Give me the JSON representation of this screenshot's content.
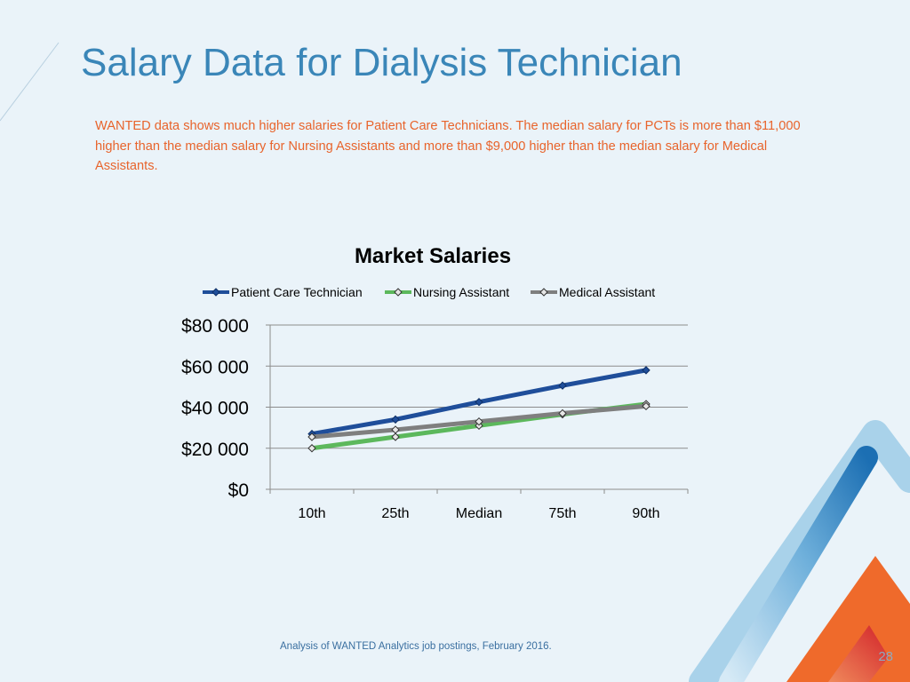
{
  "slide": {
    "title": "Salary Data for Dialysis Technician",
    "intro": "WANTED data shows much higher salaries for Patient Care Technicians.  The median salary for PCTs is more than $11,000 higher than the median salary for Nursing Assistants and more than $9,000 higher than the median salary for Medical Assistants.",
    "source_note": "Analysis of WANTED Analytics job postings, February 2016.",
    "page_number": "28"
  },
  "colors": {
    "title": "#3a86b8",
    "intro_text": "#e8642c",
    "background": "#eaf3f9",
    "deco_blue_light": "#a9d2ea",
    "deco_blue_dark": "#1c6fb3",
    "deco_orange": "#ef6a2b",
    "deco_red": "#d2232a"
  },
  "chart_data": {
    "type": "line",
    "title": "Market Salaries",
    "categories": [
      "10th",
      "25th",
      "Median",
      "75th",
      "90th"
    ],
    "ylim": [
      0,
      80000
    ],
    "yticks": [
      0,
      20000,
      40000,
      60000,
      80000
    ],
    "ytick_labels": [
      "$0",
      "$20 000",
      "$40 000",
      "$60 000",
      "$80 000"
    ],
    "grid": true,
    "legend_position": "top",
    "series": [
      {
        "name": "Patient Care Technician",
        "color": "#1f4e9a",
        "values": [
          27000,
          34000,
          42500,
          50500,
          58000
        ]
      },
      {
        "name": "Nursing Assistant",
        "color": "#5cb85c",
        "values": [
          20000,
          25500,
          31000,
          36500,
          41500
        ]
      },
      {
        "name": "Medical Assistant",
        "color": "#7f7f7f",
        "values": [
          25500,
          29000,
          33000,
          37000,
          40500
        ]
      }
    ]
  }
}
